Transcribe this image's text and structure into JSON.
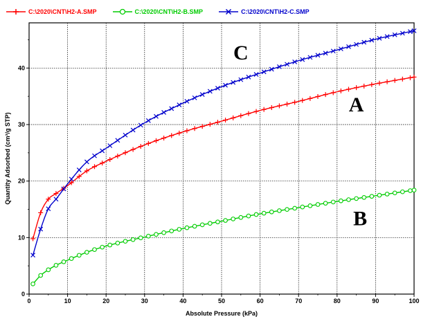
{
  "chart_data": {
    "type": "line",
    "title": "",
    "xlabel": "Absolute Pressure (kPa)",
    "ylabel": "Quantity Adsorbed (cm³/g STP)",
    "xlim": [
      0,
      100
    ],
    "ylim": [
      0,
      48
    ],
    "x_ticks": [
      0,
      10,
      20,
      30,
      40,
      50,
      60,
      70,
      80,
      90,
      100
    ],
    "y_ticks": [
      0,
      10,
      20,
      30,
      40
    ],
    "grid": true,
    "legend_position": "top",
    "series": [
      {
        "name": "C:\\2020\\CNT\\H2-A.SMP",
        "label": "A",
        "color": "#ff0000",
        "marker": "plus",
        "x": [
          1,
          3,
          5,
          7,
          10,
          15,
          20,
          30,
          40,
          50,
          60,
          70,
          80,
          90,
          100
        ],
        "y": [
          9.8,
          14.4,
          16.8,
          17.8,
          19.2,
          21.8,
          23.5,
          26.4,
          28.7,
          30.6,
          32.5,
          34.1,
          35.8,
          37.2,
          38.4
        ]
      },
      {
        "name": "C:\\2020\\CNT\\H2-B.SMP",
        "label": "B",
        "color": "#00cc00",
        "marker": "circle",
        "x": [
          1,
          3,
          5,
          7,
          10,
          15,
          20,
          30,
          40,
          50,
          60,
          70,
          80,
          90,
          100
        ],
        "y": [
          1.8,
          3.3,
          4.3,
          5.1,
          6.0,
          7.4,
          8.5,
          10.1,
          11.6,
          12.9,
          14.2,
          15.3,
          16.4,
          17.4,
          18.4
        ]
      },
      {
        "name": "C:\\2020\\CNT\\H2-C.SMP",
        "label": "C",
        "color": "#0000cc",
        "marker": "x",
        "x": [
          1,
          3,
          5,
          7,
          10,
          15,
          20,
          30,
          40,
          50,
          60,
          70,
          80,
          90,
          100
        ],
        "y": [
          6.9,
          11.5,
          15.1,
          16.8,
          19.5,
          23.4,
          25.8,
          30.3,
          33.8,
          36.7,
          39.1,
          41.3,
          43.2,
          45.1,
          46.6
        ]
      }
    ],
    "annotations": [
      {
        "text": "C",
        "x": 55,
        "y": 41.5
      },
      {
        "text": "A",
        "x": 85,
        "y": 32.3
      },
      {
        "text": "B",
        "x": 86,
        "y": 12.2
      }
    ]
  }
}
